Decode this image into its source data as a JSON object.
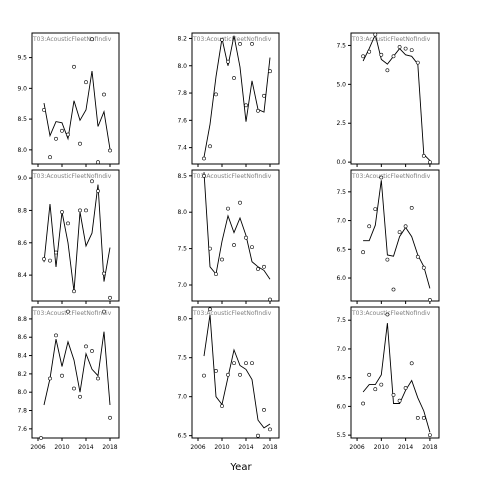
{
  "chart_data": {
    "type": "scatter",
    "xlabel": "Year",
    "strip_label": "T03:AcousticFleetNofIndiv",
    "xticks": [
      2006,
      2010,
      2014,
      2018
    ],
    "xlim": [
      2005,
      2019.5
    ],
    "panels": [
      {
        "ylim": [
          7.77,
          9.9
        ],
        "yticks": [
          {
            "v": 8.0,
            "label": "8.0"
          },
          {
            "v": 8.5,
            "label": "8.5"
          },
          {
            "v": 9.0,
            "label": "9.0"
          },
          {
            "v": 9.5,
            "label": "9.5"
          }
        ],
        "points": [
          [
            2007,
            8.65
          ],
          [
            2008,
            7.88
          ],
          [
            2009,
            8.18
          ],
          [
            2010,
            8.31
          ],
          [
            2011,
            8.25
          ],
          [
            2012,
            9.35
          ],
          [
            2013,
            8.1
          ],
          [
            2014,
            9.1
          ],
          [
            2015,
            9.8
          ],
          [
            2016,
            7.8
          ],
          [
            2017,
            8.9
          ],
          [
            2018,
            7.99
          ]
        ],
        "fit": [
          [
            2007,
            8.76
          ],
          [
            2008,
            8.23
          ],
          [
            2009,
            8.46
          ],
          [
            2010,
            8.44
          ],
          [
            2011,
            8.18
          ],
          [
            2012,
            8.8
          ],
          [
            2013,
            8.48
          ],
          [
            2014,
            8.65
          ],
          [
            2015,
            9.28
          ],
          [
            2016,
            8.38
          ],
          [
            2017,
            8.62
          ],
          [
            2018,
            8.01
          ]
        ]
      },
      {
        "ylim": [
          7.28,
          8.24
        ],
        "yticks": [
          {
            "v": 7.4,
            "label": "7.4"
          },
          {
            "v": 7.6,
            "label": "7.6"
          },
          {
            "v": 7.8,
            "label": "7.8"
          },
          {
            "v": 8.0,
            "label": "8.0"
          },
          {
            "v": 8.2,
            "label": "8.2"
          }
        ],
        "points": [
          [
            2007,
            7.32
          ],
          [
            2008,
            7.41
          ],
          [
            2009,
            7.79
          ],
          [
            2010,
            8.19
          ],
          [
            2011,
            8.03
          ],
          [
            2012,
            7.91
          ],
          [
            2013,
            8.16
          ],
          [
            2014,
            7.71
          ],
          [
            2015,
            8.16
          ],
          [
            2016,
            7.67
          ],
          [
            2017,
            7.78
          ],
          [
            2018,
            7.96
          ]
        ],
        "fit": [
          [
            2007,
            7.33
          ],
          [
            2008,
            7.57
          ],
          [
            2009,
            7.92
          ],
          [
            2010,
            8.2
          ],
          [
            2011,
            8.0
          ],
          [
            2012,
            8.22
          ],
          [
            2013,
            7.99
          ],
          [
            2014,
            7.59
          ],
          [
            2015,
            7.89
          ],
          [
            2016,
            7.68
          ],
          [
            2017,
            7.66
          ],
          [
            2018,
            8.06
          ]
        ]
      },
      {
        "ylim": [
          -0.12,
          8.3
        ],
        "yticks": [
          {
            "v": 0.0,
            "label": "0.0"
          },
          {
            "v": 2.5,
            "label": "2.5"
          },
          {
            "v": 5.0,
            "label": "5.0"
          },
          {
            "v": 7.5,
            "label": "7.5"
          }
        ],
        "points": [
          [
            2007,
            6.8
          ],
          [
            2008,
            7.1
          ],
          [
            2009,
            8.2
          ],
          [
            2010,
            6.9
          ],
          [
            2011,
            5.9
          ],
          [
            2012,
            6.8
          ],
          [
            2013,
            7.4
          ],
          [
            2014,
            7.3
          ],
          [
            2015,
            7.2
          ],
          [
            2016,
            6.4
          ],
          [
            2017,
            0.4
          ],
          [
            2018,
            0.0
          ]
        ],
        "fit": [
          [
            2007,
            6.5
          ],
          [
            2008,
            7.3
          ],
          [
            2009,
            8.2
          ],
          [
            2010,
            6.6
          ],
          [
            2011,
            6.3
          ],
          [
            2012,
            6.8
          ],
          [
            2013,
            7.3
          ],
          [
            2014,
            6.9
          ],
          [
            2015,
            6.8
          ],
          [
            2016,
            6.3
          ],
          [
            2017,
            0.5
          ],
          [
            2018,
            0.1
          ]
        ]
      },
      {
        "ylim": [
          8.24,
          9.05
        ],
        "yticks": [
          {
            "v": 8.4,
            "label": "8.4"
          },
          {
            "v": 8.6,
            "label": "8.6"
          },
          {
            "v": 8.8,
            "label": "8.8"
          },
          {
            "v": 9.0,
            "label": "9.0"
          }
        ],
        "points": [
          [
            2007,
            8.5
          ],
          [
            2008,
            8.49
          ],
          [
            2009,
            8.54
          ],
          [
            2010,
            8.79
          ],
          [
            2011,
            8.72
          ],
          [
            2012,
            8.3
          ],
          [
            2013,
            8.8
          ],
          [
            2014,
            8.8
          ],
          [
            2015,
            8.98
          ],
          [
            2016,
            8.92
          ],
          [
            2017,
            8.41
          ],
          [
            2018,
            8.26
          ]
        ],
        "fit": [
          [
            2007,
            8.48
          ],
          [
            2008,
            8.84
          ],
          [
            2009,
            8.45
          ],
          [
            2010,
            8.79
          ],
          [
            2011,
            8.6
          ],
          [
            2012,
            8.3
          ],
          [
            2013,
            8.79
          ],
          [
            2014,
            8.58
          ],
          [
            2015,
            8.66
          ],
          [
            2016,
            8.96
          ],
          [
            2017,
            8.36
          ],
          [
            2018,
            8.57
          ]
        ]
      },
      {
        "ylim": [
          6.78,
          8.58
        ],
        "yticks": [
          {
            "v": 7.0,
            "label": "7.0"
          },
          {
            "v": 7.5,
            "label": "7.5"
          },
          {
            "v": 8.0,
            "label": "8.0"
          },
          {
            "v": 8.5,
            "label": "8.5"
          }
        ],
        "points": [
          [
            2007,
            8.5
          ],
          [
            2008,
            7.5
          ],
          [
            2009,
            7.15
          ],
          [
            2010,
            7.35
          ],
          [
            2011,
            8.05
          ],
          [
            2012,
            7.55
          ],
          [
            2013,
            8.13
          ],
          [
            2014,
            7.65
          ],
          [
            2015,
            7.52
          ],
          [
            2016,
            7.22
          ],
          [
            2017,
            7.25
          ],
          [
            2018,
            6.8
          ]
        ],
        "fit": [
          [
            2007,
            8.55
          ],
          [
            2008,
            7.25
          ],
          [
            2009,
            7.15
          ],
          [
            2010,
            7.6
          ],
          [
            2011,
            7.95
          ],
          [
            2012,
            7.72
          ],
          [
            2013,
            7.92
          ],
          [
            2014,
            7.68
          ],
          [
            2015,
            7.32
          ],
          [
            2016,
            7.25
          ],
          [
            2017,
            7.2
          ],
          [
            2018,
            7.08
          ]
        ]
      },
      {
        "ylim": [
          5.6,
          7.88
        ],
        "yticks": [
          {
            "v": 6.0,
            "label": "6.0"
          },
          {
            "v": 6.5,
            "label": "6.5"
          },
          {
            "v": 7.0,
            "label": "7.0"
          },
          {
            "v": 7.5,
            "label": "7.5"
          }
        ],
        "points": [
          [
            2007,
            6.45
          ],
          [
            2008,
            6.9
          ],
          [
            2009,
            7.2
          ],
          [
            2010,
            7.75
          ],
          [
            2011,
            6.32
          ],
          [
            2012,
            5.8
          ],
          [
            2013,
            6.8
          ],
          [
            2014,
            6.9
          ],
          [
            2015,
            7.22
          ],
          [
            2016,
            6.37
          ],
          [
            2017,
            6.18
          ],
          [
            2018,
            5.62
          ]
        ],
        "fit": [
          [
            2007,
            6.65
          ],
          [
            2008,
            6.65
          ],
          [
            2009,
            6.92
          ],
          [
            2010,
            7.7
          ],
          [
            2011,
            6.4
          ],
          [
            2012,
            6.38
          ],
          [
            2013,
            6.72
          ],
          [
            2014,
            6.88
          ],
          [
            2015,
            6.72
          ],
          [
            2016,
            6.4
          ],
          [
            2017,
            6.2
          ],
          [
            2018,
            5.82
          ]
        ]
      },
      {
        "ylim": [
          7.5,
          8.93
        ],
        "yticks": [
          {
            "v": 7.6,
            "label": "7.6"
          },
          {
            "v": 7.8,
            "label": "7.8"
          },
          {
            "v": 8.0,
            "label": "8.0"
          },
          {
            "v": 8.2,
            "label": "8.2"
          },
          {
            "v": 8.4,
            "label": "8.4"
          },
          {
            "v": 8.6,
            "label": "8.6"
          },
          {
            "v": 8.8,
            "label": "8.8"
          }
        ],
        "points": [
          [
            2006.5,
            7.5
          ],
          [
            2008,
            8.15
          ],
          [
            2009,
            8.62
          ],
          [
            2010,
            8.18
          ],
          [
            2011,
            8.88
          ],
          [
            2012,
            8.04
          ],
          [
            2013,
            7.95
          ],
          [
            2014,
            8.5
          ],
          [
            2015,
            8.45
          ],
          [
            2016,
            8.15
          ],
          [
            2017,
            8.88
          ],
          [
            2018,
            7.72
          ]
        ],
        "fit": [
          [
            2007,
            7.86
          ],
          [
            2008,
            8.15
          ],
          [
            2009,
            8.58
          ],
          [
            2010,
            8.28
          ],
          [
            2011,
            8.55
          ],
          [
            2012,
            8.35
          ],
          [
            2013,
            8.0
          ],
          [
            2014,
            8.42
          ],
          [
            2015,
            8.25
          ],
          [
            2016,
            8.18
          ],
          [
            2017,
            8.66
          ],
          [
            2018,
            7.86
          ]
        ]
      },
      {
        "ylim": [
          6.47,
          8.15
        ],
        "yticks": [
          {
            "v": 6.5,
            "label": "6.5"
          },
          {
            "v": 7.0,
            "label": "7.0"
          },
          {
            "v": 7.5,
            "label": "7.5"
          },
          {
            "v": 8.0,
            "label": "8.0"
          }
        ],
        "points": [
          [
            2007,
            7.27
          ],
          [
            2008,
            8.12
          ],
          [
            2009,
            7.33
          ],
          [
            2010,
            6.88
          ],
          [
            2011,
            7.28
          ],
          [
            2012,
            7.43
          ],
          [
            2013,
            7.28
          ],
          [
            2014,
            7.43
          ],
          [
            2015,
            7.43
          ],
          [
            2016,
            6.5
          ],
          [
            2017,
            6.83
          ],
          [
            2018,
            6.58
          ]
        ],
        "fit": [
          [
            2007,
            7.52
          ],
          [
            2008,
            8.05
          ],
          [
            2009,
            7.0
          ],
          [
            2010,
            6.9
          ],
          [
            2011,
            7.25
          ],
          [
            2012,
            7.6
          ],
          [
            2013,
            7.4
          ],
          [
            2014,
            7.35
          ],
          [
            2015,
            7.22
          ],
          [
            2016,
            6.7
          ],
          [
            2017,
            6.6
          ],
          [
            2018,
            6.65
          ]
        ]
      },
      {
        "ylim": [
          5.45,
          7.73
        ],
        "yticks": [
          {
            "v": 5.5,
            "label": "5.5"
          },
          {
            "v": 6.0,
            "label": "6.0"
          },
          {
            "v": 6.5,
            "label": "6.5"
          },
          {
            "v": 7.0,
            "label": "7.0"
          },
          {
            "v": 7.5,
            "label": "7.5"
          }
        ],
        "points": [
          [
            2007,
            6.05
          ],
          [
            2008,
            6.55
          ],
          [
            2009,
            6.3
          ],
          [
            2010,
            6.38
          ],
          [
            2011,
            7.6
          ],
          [
            2012,
            6.2
          ],
          [
            2013,
            6.1
          ],
          [
            2014,
            6.32
          ],
          [
            2015,
            6.75
          ],
          [
            2016,
            5.8
          ],
          [
            2017,
            5.8
          ],
          [
            2018,
            5.5
          ]
        ],
        "fit": [
          [
            2007,
            6.25
          ],
          [
            2008,
            6.38
          ],
          [
            2009,
            6.38
          ],
          [
            2010,
            6.55
          ],
          [
            2011,
            7.45
          ],
          [
            2012,
            6.05
          ],
          [
            2013,
            6.05
          ],
          [
            2014,
            6.28
          ],
          [
            2015,
            6.45
          ],
          [
            2016,
            6.15
          ],
          [
            2017,
            5.92
          ],
          [
            2018,
            5.55
          ]
        ]
      }
    ]
  }
}
